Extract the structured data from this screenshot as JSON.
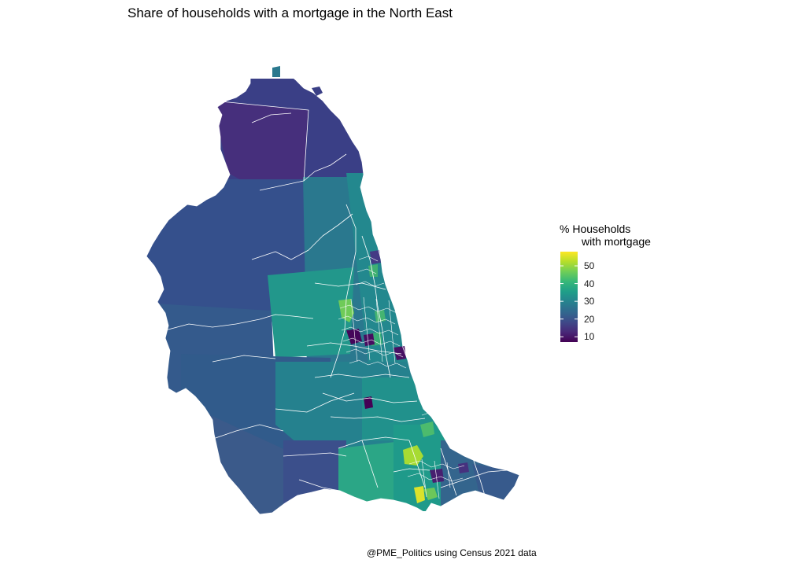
{
  "title": "Share of households with a mortgage in the North East",
  "caption": "@PME_Politics using Census 2021 data",
  "legend": {
    "title_line1": "% Households",
    "title_line2": "with mortgage",
    "ticks": [
      "10",
      "20",
      "30",
      "40",
      "50"
    ],
    "range": [
      7,
      58
    ]
  },
  "colors": {
    "viridis": [
      "#440154",
      "#482878",
      "#3e4a89",
      "#31688e",
      "#26828e",
      "#1f9e89",
      "#35b779",
      "#6ece58",
      "#b5de2b",
      "#fde725"
    ],
    "boundary": "#ffffff"
  }
}
